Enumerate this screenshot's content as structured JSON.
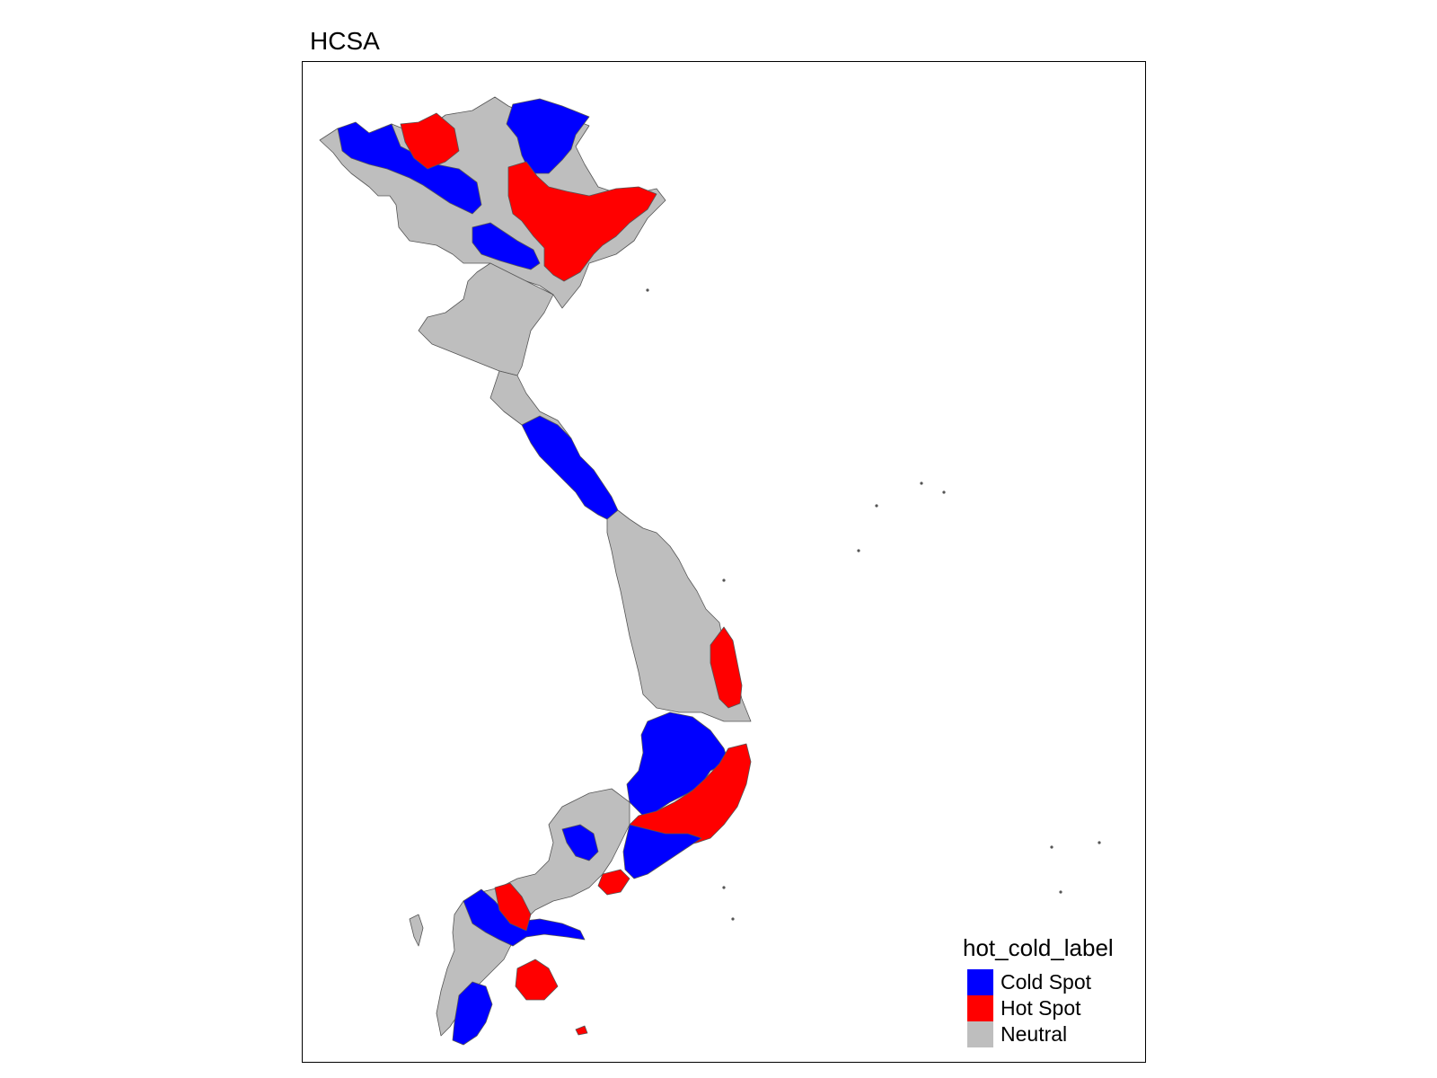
{
  "title": "HCSA",
  "legend": {
    "title": "hot_cold_label",
    "items": [
      {
        "label": "Cold Spot",
        "color": "#0000ff"
      },
      {
        "label": "Hot Spot",
        "color": "#ff0000"
      },
      {
        "label": "Neutral",
        "color": "#bebebe"
      }
    ]
  },
  "colors": {
    "cold": "#0000ff",
    "hot": "#ff0000",
    "neutral": "#bebebe",
    "border": "#555555"
  },
  "regions_summary": {
    "category_order": [
      "cold",
      "hot",
      "neutral"
    ]
  }
}
